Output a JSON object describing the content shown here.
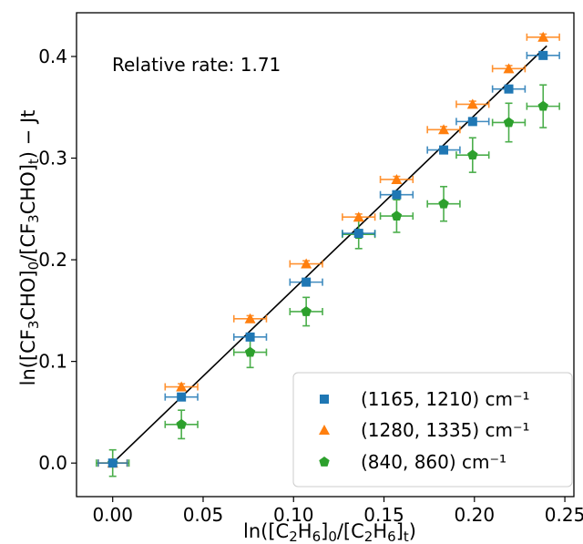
{
  "chart_data": {
    "type": "scatter",
    "annotation": "Relative rate: 1.71",
    "xlabel": {
      "prefix": "ln([C",
      "s1": "2",
      "mid1": "H",
      "s2": "6",
      "mid2": "]",
      "s3": "0",
      "mid3": "/[C",
      "s4": "2",
      "mid4": "H",
      "s5": "6",
      "mid5": "]",
      "s6": "t",
      "suffix": ")"
    },
    "ylabel": {
      "prefix": "ln([CF",
      "s1": "3",
      "mid1": "CHO]",
      "s2": "0",
      "mid2": "/[CF",
      "s3": "3",
      "mid3": "CHO]",
      "s4": "t",
      "suffix": ") − Jt"
    },
    "xlim": [
      -0.02,
      0.255
    ],
    "ylim": [
      -0.033,
      0.443
    ],
    "xticks": [
      "0.00",
      "0.05",
      "0.10",
      "0.15",
      "0.20",
      "0.25"
    ],
    "yticks": [
      "0.0",
      "0.1",
      "0.2",
      "0.3",
      "0.4"
    ],
    "grid": false,
    "legend_position": "lower-right",
    "fit_line": {
      "slope": 1.71,
      "x": [
        0.0,
        0.24
      ]
    },
    "series": [
      {
        "name": "(1165, 1210) cm⁻¹",
        "color": "#1f77b4",
        "marker": "square",
        "x": [
          0.0,
          0.038,
          0.076,
          0.107,
          0.136,
          0.157,
          0.183,
          0.199,
          0.219,
          0.238
        ],
        "y": [
          0.0,
          0.065,
          0.124,
          0.178,
          0.226,
          0.264,
          0.308,
          0.336,
          0.368,
          0.401
        ],
        "xerr": [
          0.008,
          0.009,
          0.009,
          0.009,
          0.009,
          0.009,
          0.009,
          0.009,
          0.009,
          0.009
        ],
        "yerr": [
          0.003,
          0.003,
          0.003,
          0.003,
          0.003,
          0.003,
          0.003,
          0.003,
          0.003,
          0.003
        ]
      },
      {
        "name": "(1280, 1335) cm⁻¹",
        "color": "#ff7f0e",
        "marker": "triangle",
        "x": [
          0.0,
          0.038,
          0.076,
          0.107,
          0.136,
          0.157,
          0.183,
          0.199,
          0.219,
          0.238
        ],
        "y": [
          0.0,
          0.075,
          0.142,
          0.196,
          0.242,
          0.279,
          0.328,
          0.353,
          0.388,
          0.419
        ],
        "xerr": [
          0.008,
          0.009,
          0.009,
          0.009,
          0.009,
          0.009,
          0.009,
          0.009,
          0.009,
          0.009
        ],
        "yerr": [
          0.003,
          0.003,
          0.003,
          0.003,
          0.003,
          0.003,
          0.003,
          0.003,
          0.003,
          0.003
        ]
      },
      {
        "name": "(840, 860) cm⁻¹",
        "color": "#2ca02c",
        "marker": "pentagon",
        "x": [
          0.0,
          0.038,
          0.076,
          0.107,
          0.136,
          0.157,
          0.183,
          0.199,
          0.219,
          0.238
        ],
        "y": [
          0.0,
          0.038,
          0.109,
          0.149,
          0.225,
          0.243,
          0.255,
          0.303,
          0.335,
          0.351
        ],
        "xerr": [
          0.009,
          0.009,
          0.009,
          0.009,
          0.009,
          0.009,
          0.009,
          0.009,
          0.009,
          0.009
        ],
        "yerr": [
          0.013,
          0.014,
          0.015,
          0.014,
          0.014,
          0.016,
          0.017,
          0.017,
          0.019,
          0.021
        ]
      }
    ]
  }
}
